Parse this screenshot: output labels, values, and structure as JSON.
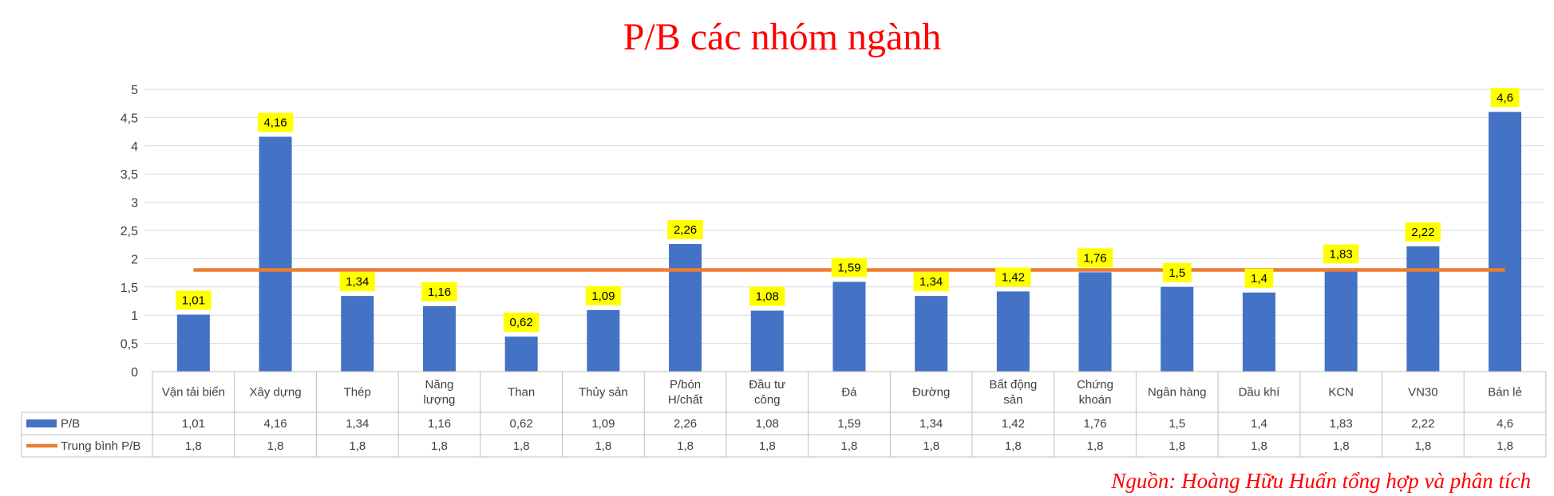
{
  "chart_data": {
    "type": "bar",
    "title": "P/B các nhóm ngành",
    "categories": [
      [
        "Vận tải biển"
      ],
      [
        "Xây dựng"
      ],
      [
        "Thép"
      ],
      [
        "Năng",
        "lượng"
      ],
      [
        "Than"
      ],
      [
        "Thủy sản"
      ],
      [
        "P/bón",
        "H/chất"
      ],
      [
        "Đầu tư",
        "công"
      ],
      [
        "Đá"
      ],
      [
        "Đường"
      ],
      [
        "Bất động",
        "sản"
      ],
      [
        "Chứng",
        "khoán"
      ],
      [
        "Ngân hàng"
      ],
      [
        "Dầu khí"
      ],
      [
        "KCN"
      ],
      [
        "VN30"
      ],
      [
        "Bán lẻ"
      ]
    ],
    "series": [
      {
        "name": "P/B",
        "type": "bar",
        "color": "#4472c4",
        "values": [
          1.01,
          4.16,
          1.34,
          1.16,
          0.62,
          1.09,
          2.26,
          1.08,
          1.59,
          1.34,
          1.42,
          1.76,
          1.5,
          1.4,
          1.83,
          2.22,
          4.6
        ],
        "labels": [
          "1,01",
          "4,16",
          "1,34",
          "1,16",
          "0,62",
          "1,09",
          "2,26",
          "1,08",
          "1,59",
          "1,34",
          "1,42",
          "1,76",
          "1,5",
          "1,4",
          "1,83",
          "2,22",
          "4,6"
        ]
      },
      {
        "name": "Trung bình P/B",
        "type": "line",
        "color": "#ed7d31",
        "values": [
          1.8,
          1.8,
          1.8,
          1.8,
          1.8,
          1.8,
          1.8,
          1.8,
          1.8,
          1.8,
          1.8,
          1.8,
          1.8,
          1.8,
          1.8,
          1.8,
          1.8
        ],
        "labels": [
          "1,8",
          "1,8",
          "1,8",
          "1,8",
          "1,8",
          "1,8",
          "1,8",
          "1,8",
          "1,8",
          "1,8",
          "1,8",
          "1,8",
          "1,8",
          "1,8",
          "1,8",
          "1,8",
          "1,8"
        ]
      }
    ],
    "ylim": [
      0,
      5
    ],
    "ytick_values": [
      0,
      0.5,
      1,
      1.5,
      2,
      2.5,
      3,
      3.5,
      4,
      4.5,
      5
    ],
    "ytick_labels": [
      "0",
      "0,5",
      "1",
      "1,5",
      "2",
      "2,5",
      "3",
      "3,5",
      "4",
      "4,5",
      "5"
    ],
    "grid": true,
    "legend": "data-table-left",
    "data_label_bg": "#ffff00",
    "title_color": "#ff0000",
    "source_note": "Nguồn: Hoàng Hữu Huấn tổng hợp và phân tích"
  }
}
